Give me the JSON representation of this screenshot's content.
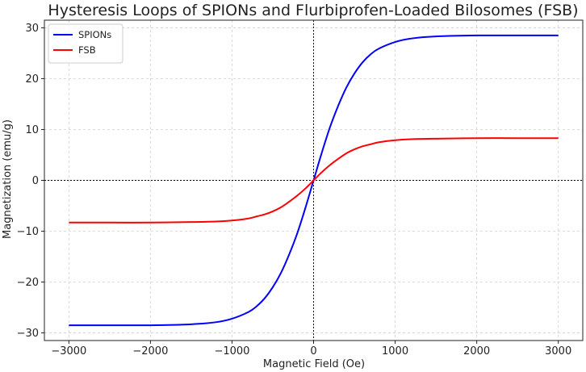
{
  "chart_data": {
    "type": "line",
    "title": "Hysteresis Loops of SPIONs and Flurbiprofen-Loaded Bilosomes (FSB)",
    "xlabel": "Magnetic Field (Oe)",
    "ylabel": "Magnetization (emu/g)",
    "xlim": [
      -3300,
      3300
    ],
    "ylim": [
      -31.5,
      31.5
    ],
    "xticks": [
      -3000,
      -2000,
      -1000,
      0,
      1000,
      2000,
      3000
    ],
    "xtick_labels": [
      "−3000",
      "−2000",
      "−1000",
      "0",
      "1000",
      "2000",
      "3000"
    ],
    "yticks": [
      -30,
      -20,
      -10,
      0,
      10,
      20,
      30
    ],
    "ytick_labels": [
      "−30",
      "−20",
      "−10",
      "0",
      "10",
      "20",
      "30"
    ],
    "grid": true,
    "legend_position": "top-left",
    "reference_lines": {
      "x": 0,
      "y": 0
    },
    "series": [
      {
        "name": "SPIONs",
        "color": "#0000ff",
        "x": [
          -3000,
          -2500,
          -2000,
          -1500,
          -1200,
          -1000,
          -800,
          -700,
          -600,
          -500,
          -400,
          -300,
          -200,
          -100,
          0,
          100,
          200,
          300,
          400,
          500,
          600,
          700,
          800,
          1000,
          1200,
          1500,
          2000,
          2500,
          3000
        ],
        "y": [
          -28.5,
          -28.5,
          -28.5,
          -28.3,
          -27.9,
          -27.2,
          -25.9,
          -24.8,
          -23.2,
          -21.0,
          -18.2,
          -14.6,
          -10.4,
          -5.4,
          0,
          5.4,
          10.4,
          14.6,
          18.2,
          21.0,
          23.2,
          24.8,
          25.9,
          27.2,
          27.9,
          28.3,
          28.5,
          28.5,
          28.5
        ]
      },
      {
        "name": "FSB",
        "color": "#ff0000",
        "x": [
          -3000,
          -2500,
          -2000,
          -1500,
          -1200,
          -1000,
          -800,
          -700,
          -600,
          -500,
          -400,
          -300,
          -200,
          -100,
          0,
          100,
          200,
          300,
          400,
          500,
          600,
          700,
          800,
          1000,
          1200,
          1500,
          2000,
          2500,
          3000
        ],
        "y": [
          -8.3,
          -8.3,
          -8.3,
          -8.2,
          -8.1,
          -7.9,
          -7.5,
          -7.1,
          -6.7,
          -6.1,
          -5.3,
          -4.2,
          -3.0,
          -1.6,
          0,
          1.6,
          3.0,
          4.2,
          5.3,
          6.1,
          6.7,
          7.1,
          7.5,
          7.9,
          8.1,
          8.2,
          8.3,
          8.3,
          8.3
        ]
      }
    ]
  }
}
